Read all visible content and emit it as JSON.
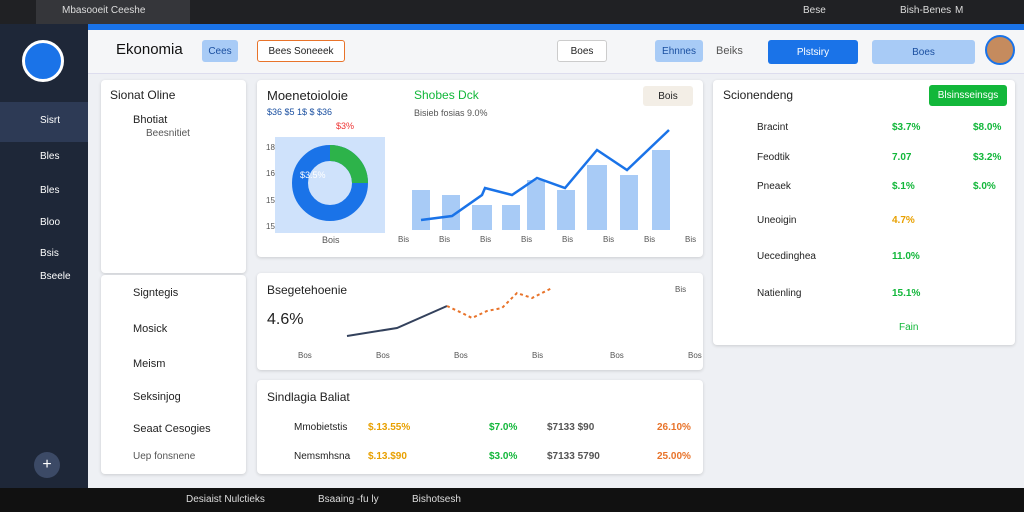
{
  "browser": {
    "tab": "Mbasooeit Ceeshe",
    "tab2": "Bese",
    "tab3": "Bish-Benes",
    "tab3b": "M"
  },
  "sidebar": {
    "items": [
      "Sisrt",
      "Bles",
      "Bles",
      "Bloo",
      "Bsis",
      "Bseele"
    ]
  },
  "header": {
    "title": "Ekonomia",
    "button": "Cees",
    "dropdown": "Bees Soneeek",
    "select": "Boes",
    "btn1": "Ehnnes",
    "btn2": "Beiks",
    "btn3": "Plstsiry",
    "btn4": "Boes"
  },
  "left": {
    "title": "Sionat Oline",
    "user": "Bhotiat",
    "user_sub": "Beesnitiet",
    "list": [
      "Signtegis",
      "Mosick",
      "Meism",
      "Seksinjog",
      "Seaat Cesogies"
    ],
    "footer": "Uep fonsnene"
  },
  "overview": {
    "title": "Moenetoioloie",
    "subtitle": "$36 $5 1$ $ $36",
    "subtitle_pct": "$3%",
    "badge": "Shobes Dck",
    "note": "Bisieb fosias 9.0%",
    "button": "Bois",
    "donut_label": "$3.5%",
    "donut_caption": "Bois",
    "y_labels": [
      "18",
      "16",
      "15",
      "15"
    ],
    "x_labels": [
      "Bis",
      "Bis",
      "Bis",
      "Bis",
      "Bis",
      "Bis",
      "Bis",
      "Bis"
    ]
  },
  "trend": {
    "title": "Bsegetehoenie",
    "value": "4.6%",
    "x_labels": [
      "Bos",
      "Bos",
      "Bos",
      "Bis",
      "Bos",
      "Bos"
    ],
    "corner": "Bis"
  },
  "table": {
    "title": "Sindlagia Baliat",
    "rows": [
      [
        "Mmobietstis",
        "$.13.55%",
        "$7.0%",
        "$7133 $90",
        "26.10%"
      ],
      [
        "Nemsmhsna",
        "$.13.$90",
        "$3.0%",
        "$7133 5790",
        "25.00%"
      ]
    ]
  },
  "right": {
    "title": "Scionendeng",
    "button": "Blsinsseinsgs",
    "rows": [
      [
        "Bracint",
        "$3.7%",
        "$8.0%"
      ],
      [
        "Feodtik",
        "7.07",
        "$3.2%"
      ],
      [
        "Pneaek",
        "$.1%",
        "$.0%"
      ],
      [
        "Uneoigin",
        "4.7%"
      ],
      [
        "Uecedinghea",
        "11.0%"
      ],
      [
        "Natienling",
        "15.1%"
      ]
    ],
    "footer": "Fain"
  },
  "taskbar": {
    "items": [
      "Desiaist Nulctieks",
      "Bsaaing -fu ly",
      "Bishotsesh"
    ]
  }
}
